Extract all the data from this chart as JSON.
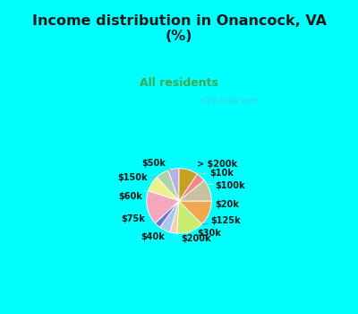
{
  "title": "Income distribution in Onancock, VA\n(%)",
  "subtitle": "All residents",
  "labels": [
    "> $200k",
    "$10k",
    "$100k",
    "$20k",
    "$125k",
    "$30k",
    "$200k",
    "$40k",
    "$75k",
    "$60k",
    "$150k",
    "$50k"
  ],
  "sizes": [
    5.5,
    6.5,
    8.0,
    17.0,
    3.0,
    5.5,
    3.5,
    13.5,
    12.5,
    11.0,
    4.5,
    9.5
  ],
  "colors": [
    "#b8b0e0",
    "#b0d4a8",
    "#f0f08a",
    "#f4a8c0",
    "#7070d0",
    "#a8c8f0",
    "#f0d0b0",
    "#c8ec70",
    "#f0a850",
    "#c8c0a0",
    "#f08888",
    "#c8a020"
  ],
  "bg_top": "#00ffff",
  "bg_chart": "#e0f5e8",
  "title_color": "#1a1a1a",
  "subtitle_color": "#3aaa55",
  "subtitle_fontsize": 9,
  "title_fontsize": 11.5,
  "label_fontsize": 7,
  "startangle": 90,
  "watermark": "City-Data.com"
}
